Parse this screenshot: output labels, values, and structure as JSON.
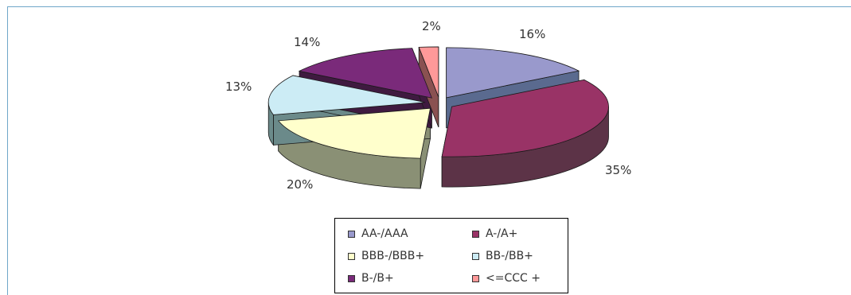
{
  "chart_data": {
    "type": "pie",
    "style": "3d-exploded",
    "categories": [
      "AA-/AAA",
      "A-/A+",
      "BBB-/BBB+",
      "BB-/BB+",
      "B-/B+",
      "<=CCC +"
    ],
    "values": [
      16,
      35,
      20,
      13,
      14,
      2
    ],
    "data_labels": [
      "16%",
      "35%",
      "20%",
      "13%",
      "14%",
      "2%"
    ],
    "colors": {
      "top": [
        "#9999cc",
        "#993366",
        "#ffffcc",
        "#ccecf5",
        "#7a2a7a",
        "#ff9999"
      ],
      "side": [
        "#5a6a8f",
        "#5c3347",
        "#8a9075",
        "#6b8a8a",
        "#3f1a40",
        "#8a5151"
      ]
    },
    "legend": {
      "position": "bottom",
      "entries": [
        "AA-/AAA",
        "A-/A+",
        "BBB-/BBB+",
        "BB-/BB+",
        "B-/B+",
        "<=CCC +"
      ]
    }
  }
}
